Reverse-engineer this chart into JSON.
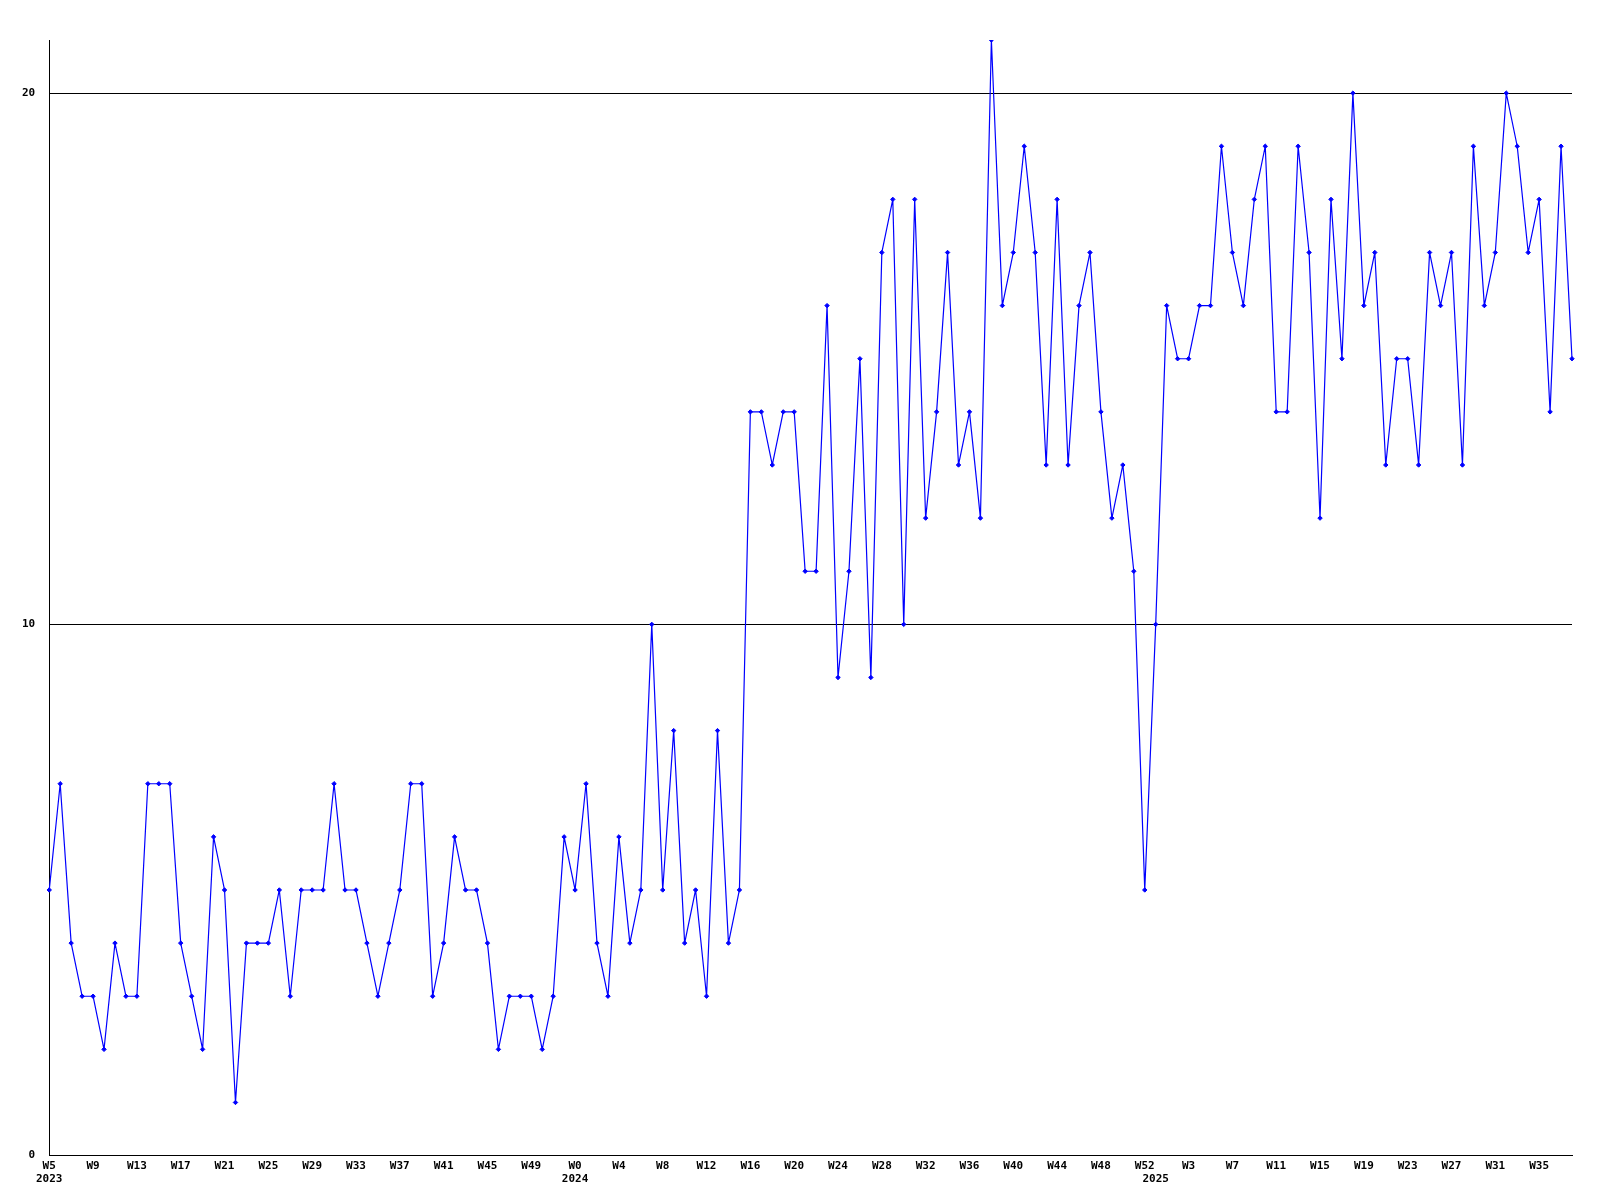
{
  "chart_data": {
    "type": "line",
    "categories": [
      "W5\n2023",
      null,
      null,
      null,
      "W9",
      null,
      null,
      null,
      "W13",
      null,
      null,
      null,
      "W17",
      null,
      null,
      null,
      "W21",
      null,
      null,
      null,
      "W25",
      null,
      null,
      null,
      "W29",
      null,
      null,
      null,
      "W33",
      null,
      null,
      null,
      "W37",
      null,
      null,
      null,
      "W41",
      null,
      null,
      null,
      "W45",
      null,
      null,
      null,
      "W49",
      null,
      null,
      null,
      "W0\n2024",
      null,
      null,
      null,
      "W4",
      null,
      null,
      null,
      "W8",
      null,
      null,
      null,
      "W12",
      null,
      null,
      null,
      "W16",
      null,
      null,
      null,
      "W20",
      null,
      null,
      null,
      "W24",
      null,
      null,
      null,
      "W28",
      null,
      null,
      null,
      "W32",
      null,
      null,
      null,
      "W36",
      null,
      null,
      null,
      "W40",
      null,
      null,
      null,
      "W44",
      null,
      null,
      null,
      "W48",
      null,
      null,
      null,
      "W52",
      "\n2025",
      null,
      null,
      "W3",
      null,
      null,
      null,
      "W7",
      null,
      null,
      null,
      "W11",
      null,
      null,
      null,
      "W15",
      null,
      null,
      null,
      "W19",
      null,
      null,
      null,
      "W23",
      null,
      null,
      null,
      "W27",
      null,
      null,
      null,
      "W31",
      null,
      null,
      null,
      "W35",
      null,
      null,
      null
    ],
    "series": [
      {
        "color": "#0000ff",
        "values": [
          5,
          7,
          4,
          3,
          3,
          2,
          4,
          3,
          3,
          7,
          7,
          7,
          4,
          3,
          2,
          6,
          5,
          1,
          4,
          4,
          4,
          5,
          3,
          5,
          5,
          5,
          7,
          5,
          5,
          4,
          3,
          4,
          5,
          7,
          7,
          3,
          4,
          6,
          5,
          5,
          4,
          2,
          3,
          3,
          3,
          2,
          3,
          6,
          5,
          7,
          4,
          3,
          6,
          4,
          5,
          10,
          5,
          8,
          4,
          5,
          3,
          8,
          4,
          5,
          14,
          14,
          13,
          14,
          14,
          11,
          11,
          16,
          9,
          11,
          15,
          9,
          17,
          18,
          10,
          18,
          12,
          14,
          17,
          13,
          14,
          12,
          21,
          16,
          17,
          19,
          17,
          13,
          18,
          13,
          16,
          17,
          14,
          12,
          13,
          11,
          5,
          10,
          16,
          15,
          15,
          16,
          16,
          19,
          17,
          16,
          18,
          19,
          14,
          14,
          19,
          17,
          12,
          18,
          15,
          20,
          16,
          17,
          13,
          15,
          15,
          13,
          17,
          16,
          17,
          13,
          19,
          16,
          17,
          20,
          19,
          17,
          18,
          14,
          19,
          15
        ]
      }
    ],
    "ylim": [
      0,
      21
    ],
    "yticks": [
      0,
      10,
      20
    ],
    "grid": "y",
    "marker": "diamond",
    "line_style": "solid",
    "legend": false
  }
}
